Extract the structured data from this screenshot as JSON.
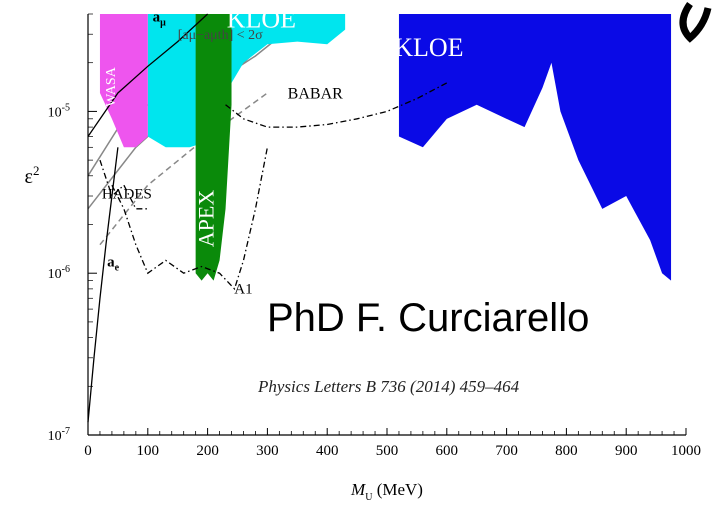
{
  "chart_data": {
    "type": "area",
    "title": "",
    "xlabel": "M_U (MeV)",
    "ylabel": "ε²",
    "xlim": [
      0,
      1000
    ],
    "ylim": [
      1e-07,
      4e-05
    ],
    "yscale": "log",
    "grid": false,
    "x_ticks": [
      0,
      100,
      200,
      300,
      400,
      500,
      600,
      700,
      800,
      900,
      1000
    ],
    "y_ticks": [
      {
        "value": 1e-07,
        "label": "10-7"
      },
      {
        "value": 1e-06,
        "label": "10-6"
      },
      {
        "value": 1e-05,
        "label": "10-5"
      }
    ],
    "colors": {
      "kloe_ll": "#0a0ae6",
      "kloe_upper": "#00e5ee",
      "wasa": "#ee55ee",
      "apex": "#0a8a0a",
      "curves": "#000000",
      "gray_bands": "#888888"
    },
    "regions": [
      {
        "name": "KLOE",
        "label": "KLOE",
        "color": "#0a0ae6",
        "x": [
          520,
          560,
          600,
          650,
          700,
          730,
          760,
          775,
          790,
          820,
          860,
          900,
          940,
          960,
          975
        ],
        "y": [
          7e-06,
          6e-06,
          9e-06,
          1.1e-05,
          9e-06,
          8e-06,
          1.4e-05,
          2e-05,
          1e-05,
          5e-06,
          2.5e-06,
          3e-06,
          1.6e-06,
          1e-06,
          9e-07
        ]
      },
      {
        "name": "KLOE upper",
        "label": "KLOE",
        "color": "#00e5ee",
        "x": [
          100,
          130,
          170,
          200,
          230,
          260,
          300,
          350,
          400,
          430
        ],
        "y": [
          7e-06,
          6e-06,
          6e-06,
          6.5e-06,
          1.3e-05,
          2e-05,
          2.6e-05,
          2.7e-05,
          2.6e-05,
          3.2e-05
        ]
      },
      {
        "name": "WASA",
        "label": "WASA",
        "color": "#ee55ee",
        "x": [
          20,
          40,
          60,
          80,
          100
        ],
        "y": [
          1.3e-05,
          9e-06,
          6e-06,
          6e-06,
          7e-06
        ]
      },
      {
        "name": "APEX",
        "label": "APEX",
        "color": "#0a8a0a",
        "x": [
          180,
          190,
          200,
          210,
          220,
          230,
          240
        ],
        "y": [
          1e-06,
          9e-07,
          1e-06,
          9e-07,
          1.2e-06,
          2.5e-06,
          1.1e-05
        ]
      }
    ],
    "curves": [
      {
        "name": "BABAR",
        "label": "BABAR",
        "style": "dash-dot",
        "x": [
          230,
          260,
          300,
          350,
          400,
          450,
          500,
          550,
          600
        ],
        "y": [
          1.1e-05,
          9e-06,
          8e-06,
          8e-06,
          8.3e-06,
          9e-06,
          1e-05,
          1.2e-05,
          1.5e-05
        ]
      },
      {
        "name": "A1",
        "label": "A1",
        "style": "dash-dot",
        "x": [
          40,
          60,
          80,
          100,
          130,
          160,
          190,
          220,
          245,
          260,
          280,
          300
        ],
        "y": [
          3.5e-06,
          2.5e-06,
          1.5e-06,
          1e-06,
          1.2e-06,
          1e-06,
          1.1e-06,
          1e-06,
          8e-07,
          1.2e-06,
          2.5e-06,
          6e-06
        ]
      },
      {
        "name": "HADES",
        "label": "HADES",
        "style": "dash-dot",
        "x": [
          20,
          40,
          60,
          80,
          100
        ],
        "y": [
          5e-06,
          3e-06,
          3.5e-06,
          2.5e-06,
          2.5e-06
        ]
      },
      {
        "name": "a_e",
        "label": "ae",
        "style": "solid",
        "x": [
          0,
          10,
          20,
          30,
          40,
          50
        ],
        "y": [
          1.2e-07,
          3e-07,
          7e-07,
          1.5e-06,
          3e-06,
          6e-06
        ]
      },
      {
        "name": "a_mu",
        "label": "aμ",
        "style": "solid",
        "x": [
          0,
          50,
          100,
          150,
          200
        ],
        "y": [
          7e-06,
          1.3e-05,
          1.9e-05,
          2.7e-05,
          4e-05
        ]
      }
    ],
    "annotations": [
      {
        "text": "[aμ−aμth] < 2σ",
        "x": 150,
        "y": 2.8e-05
      }
    ]
  },
  "overlay": {
    "author": "PhD F. Curciarello",
    "reference": "Physics Letters B 736 (2014) 459–464"
  }
}
